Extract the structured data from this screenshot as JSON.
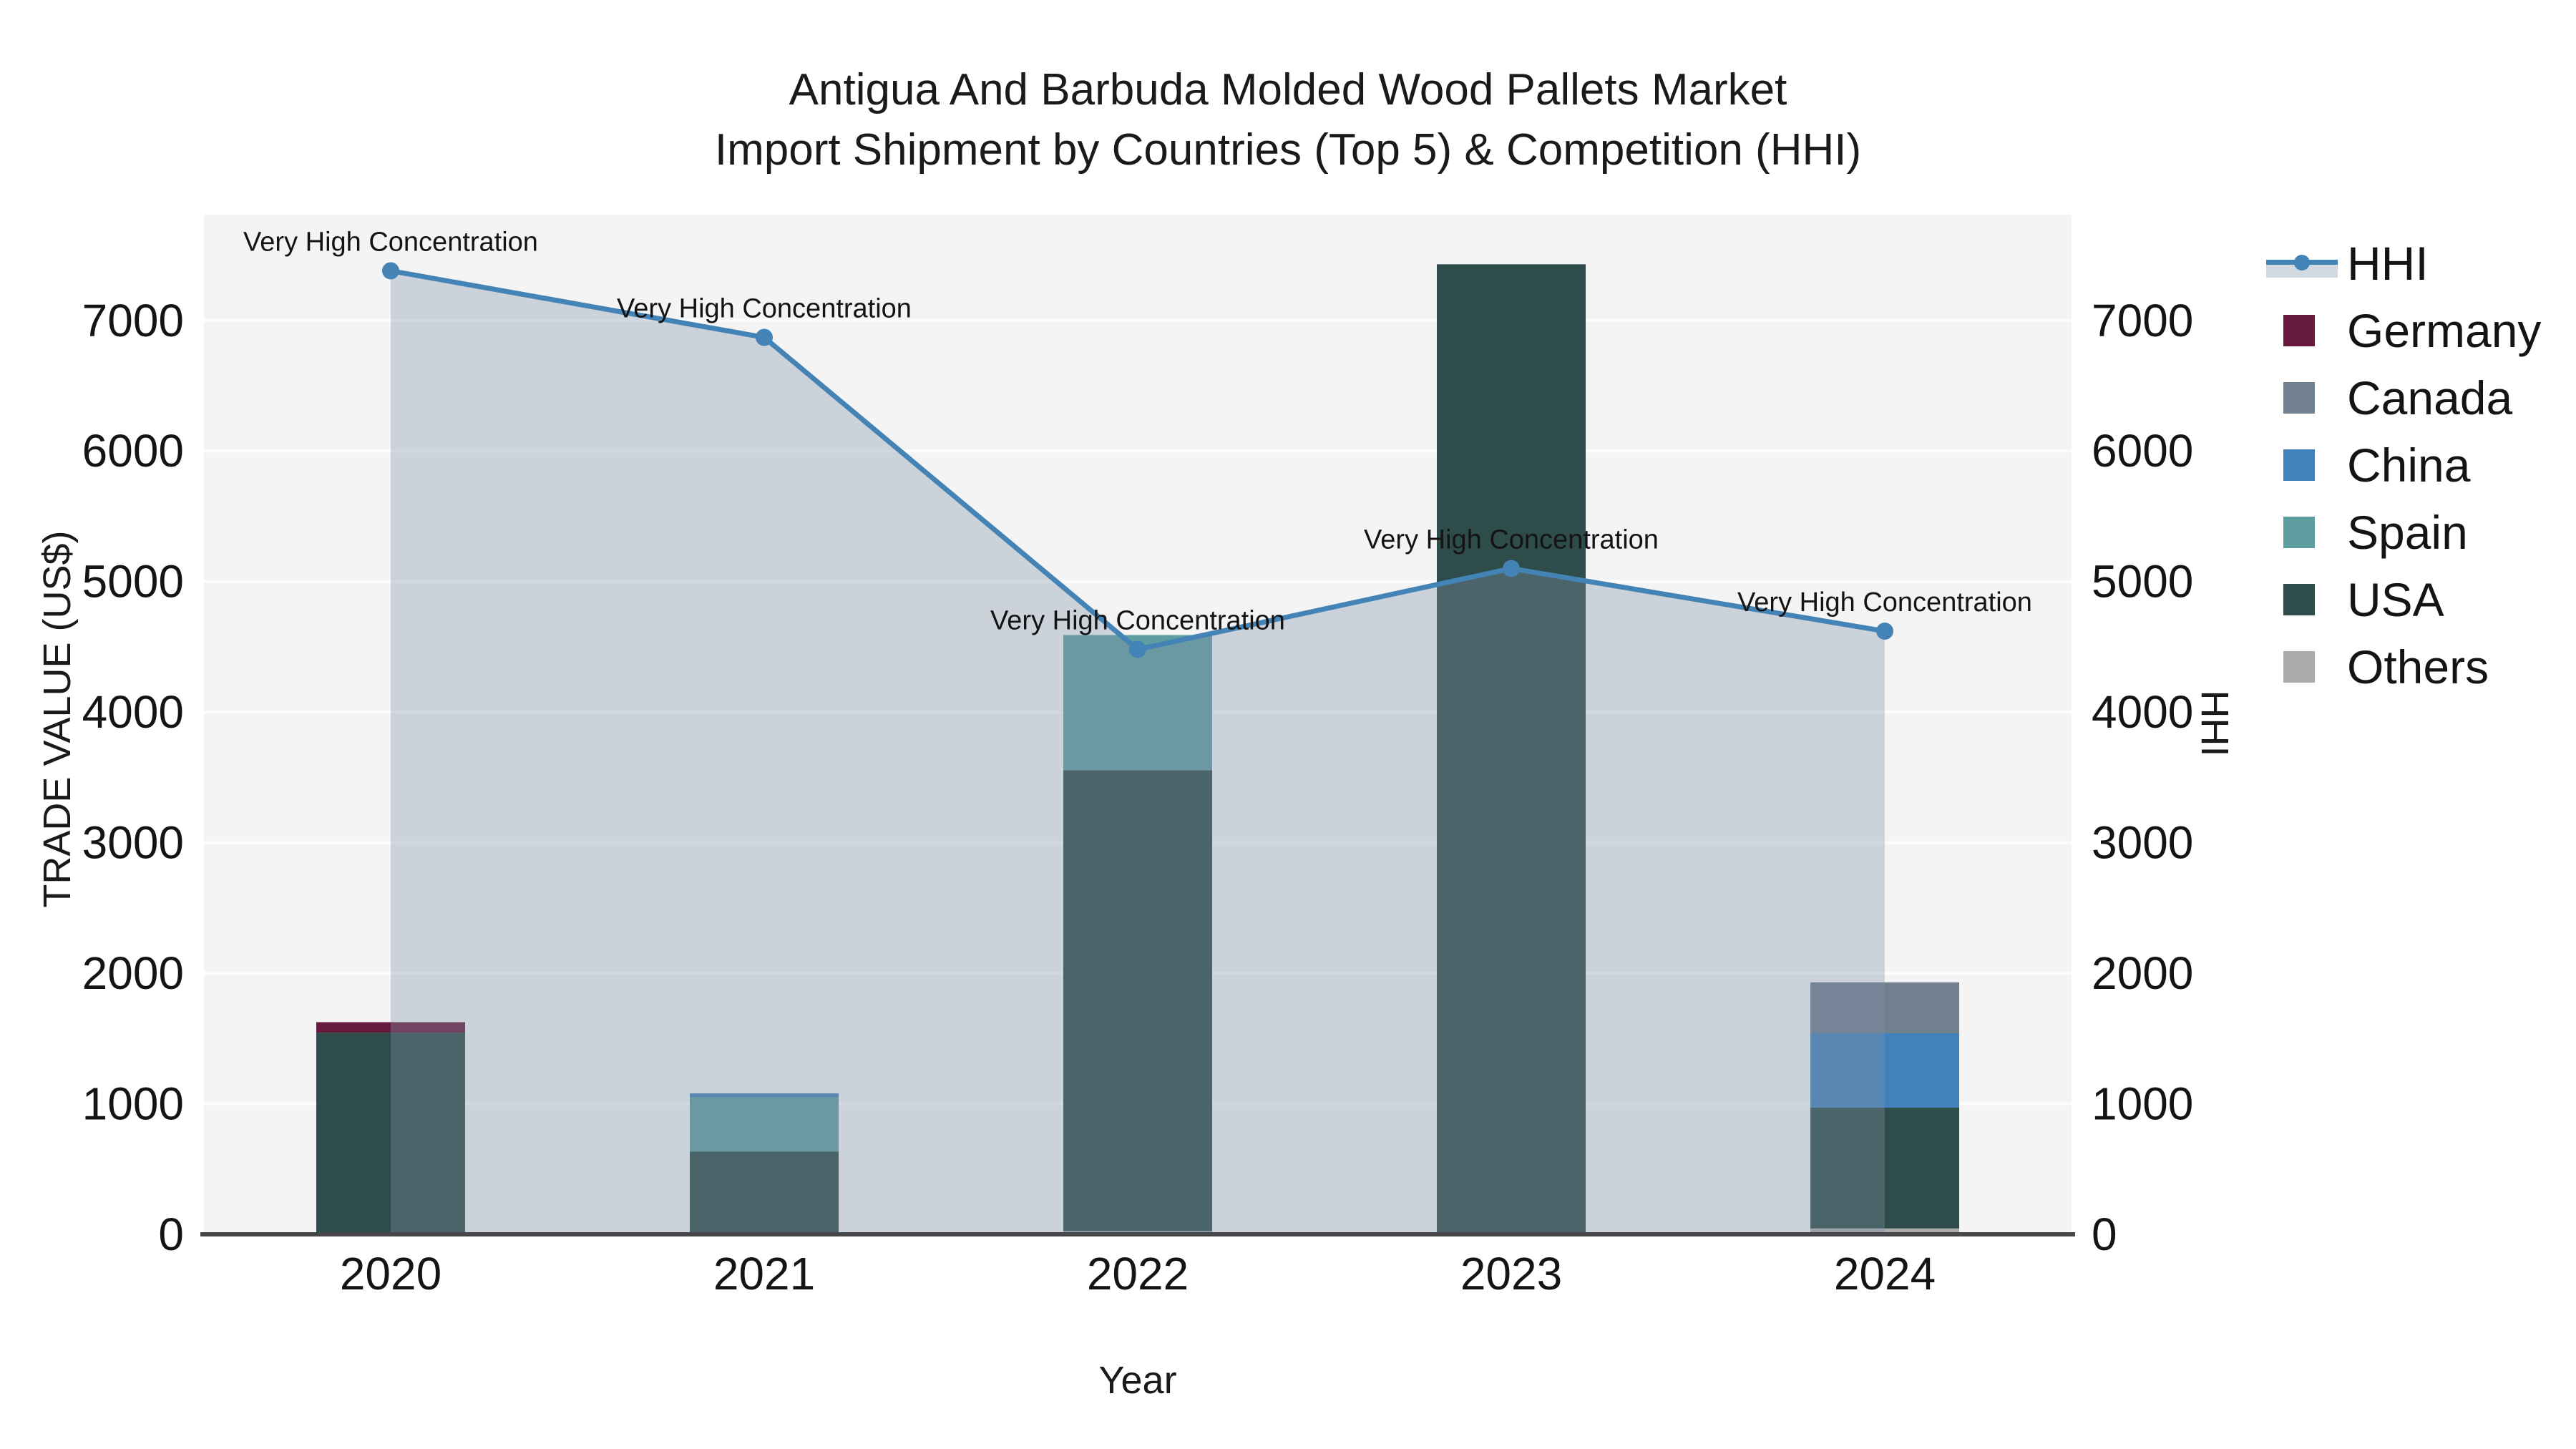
{
  "title": {
    "line1": "Antigua And Barbuda Molded Wood Pallets Market",
    "line2": "Import Shipment by Countries (Top 5) & Competition (HHI)"
  },
  "axes": {
    "left_title": "TRADE VALUE (US$)",
    "right_title": "HHI",
    "x_title": "Year"
  },
  "legend": {
    "items": [
      {
        "label": "HHI",
        "type": "line",
        "color": "#4383b5",
        "band_fill": "rgba(130,145,170,0.35)"
      },
      {
        "label": "Germany",
        "type": "square",
        "color": "#671b3c"
      },
      {
        "label": "Canada",
        "type": "square",
        "color": "#71808f"
      },
      {
        "label": "China",
        "type": "square",
        "color": "#4281bb"
      },
      {
        "label": "Spain",
        "type": "square",
        "color": "#5e9da0"
      },
      {
        "label": "USA",
        "type": "square",
        "color": "#2e4c49"
      },
      {
        "label": "Others",
        "type": "square",
        "color": "#ababab"
      }
    ]
  },
  "chart_data": {
    "type": "combo",
    "title": "Antigua And Barbuda Molded Wood Pallets Market Import Shipment by Countries (Top 5) & Competition (HHI)",
    "categories": [
      "2020",
      "2021",
      "2022",
      "2023",
      "2024"
    ],
    "xlabel": "Year",
    "ylabel_left": "TRADE VALUE (US$)",
    "ylabel_right": "HHI",
    "ylim": [
      0,
      7810
    ],
    "yticks": [
      0,
      1000,
      2000,
      3000,
      4000,
      5000,
      6000,
      7000
    ],
    "grid": true,
    "legend_position": "right",
    "plot_bg": "#f4f4f5",
    "gridline_color": "#fdfdfe",
    "axis_line_color": "#47474a",
    "stack_order_bottom_to_top": [
      "Others",
      "USA",
      "Spain",
      "China",
      "Canada",
      "Germany"
    ],
    "bar_series": [
      {
        "name": "Germany",
        "color": "#671b3c",
        "values": [
          80,
          0,
          0,
          0,
          0
        ]
      },
      {
        "name": "Canada",
        "color": "#71808f",
        "values": [
          0,
          0,
          0,
          0,
          390
        ]
      },
      {
        "name": "China",
        "color": "#4281bb",
        "values": [
          0,
          30,
          0,
          0,
          570
        ]
      },
      {
        "name": "Spain",
        "color": "#5e9da0",
        "values": [
          0,
          415,
          1035,
          0,
          0
        ]
      },
      {
        "name": "USA",
        "color": "#2e4c49",
        "values": [
          1545,
          635,
          3530,
          7430,
          925
        ]
      },
      {
        "name": "Others",
        "color": "#ababab",
        "values": [
          0,
          0,
          25,
          0,
          45
        ]
      }
    ],
    "bar_totals": [
      1625,
      1080,
      4590,
      7430,
      1930
    ],
    "line_series": {
      "name": "HHI",
      "color": "#4383b5",
      "area_fill": "rgba(130,145,170,0.35)",
      "values": [
        7380,
        6870,
        4480,
        5100,
        4620
      ]
    },
    "annotations": [
      "Very High Concentration",
      "Very High Concentration",
      "Very High Concentration",
      "Very High Concentration",
      "Very High Concentration"
    ]
  }
}
